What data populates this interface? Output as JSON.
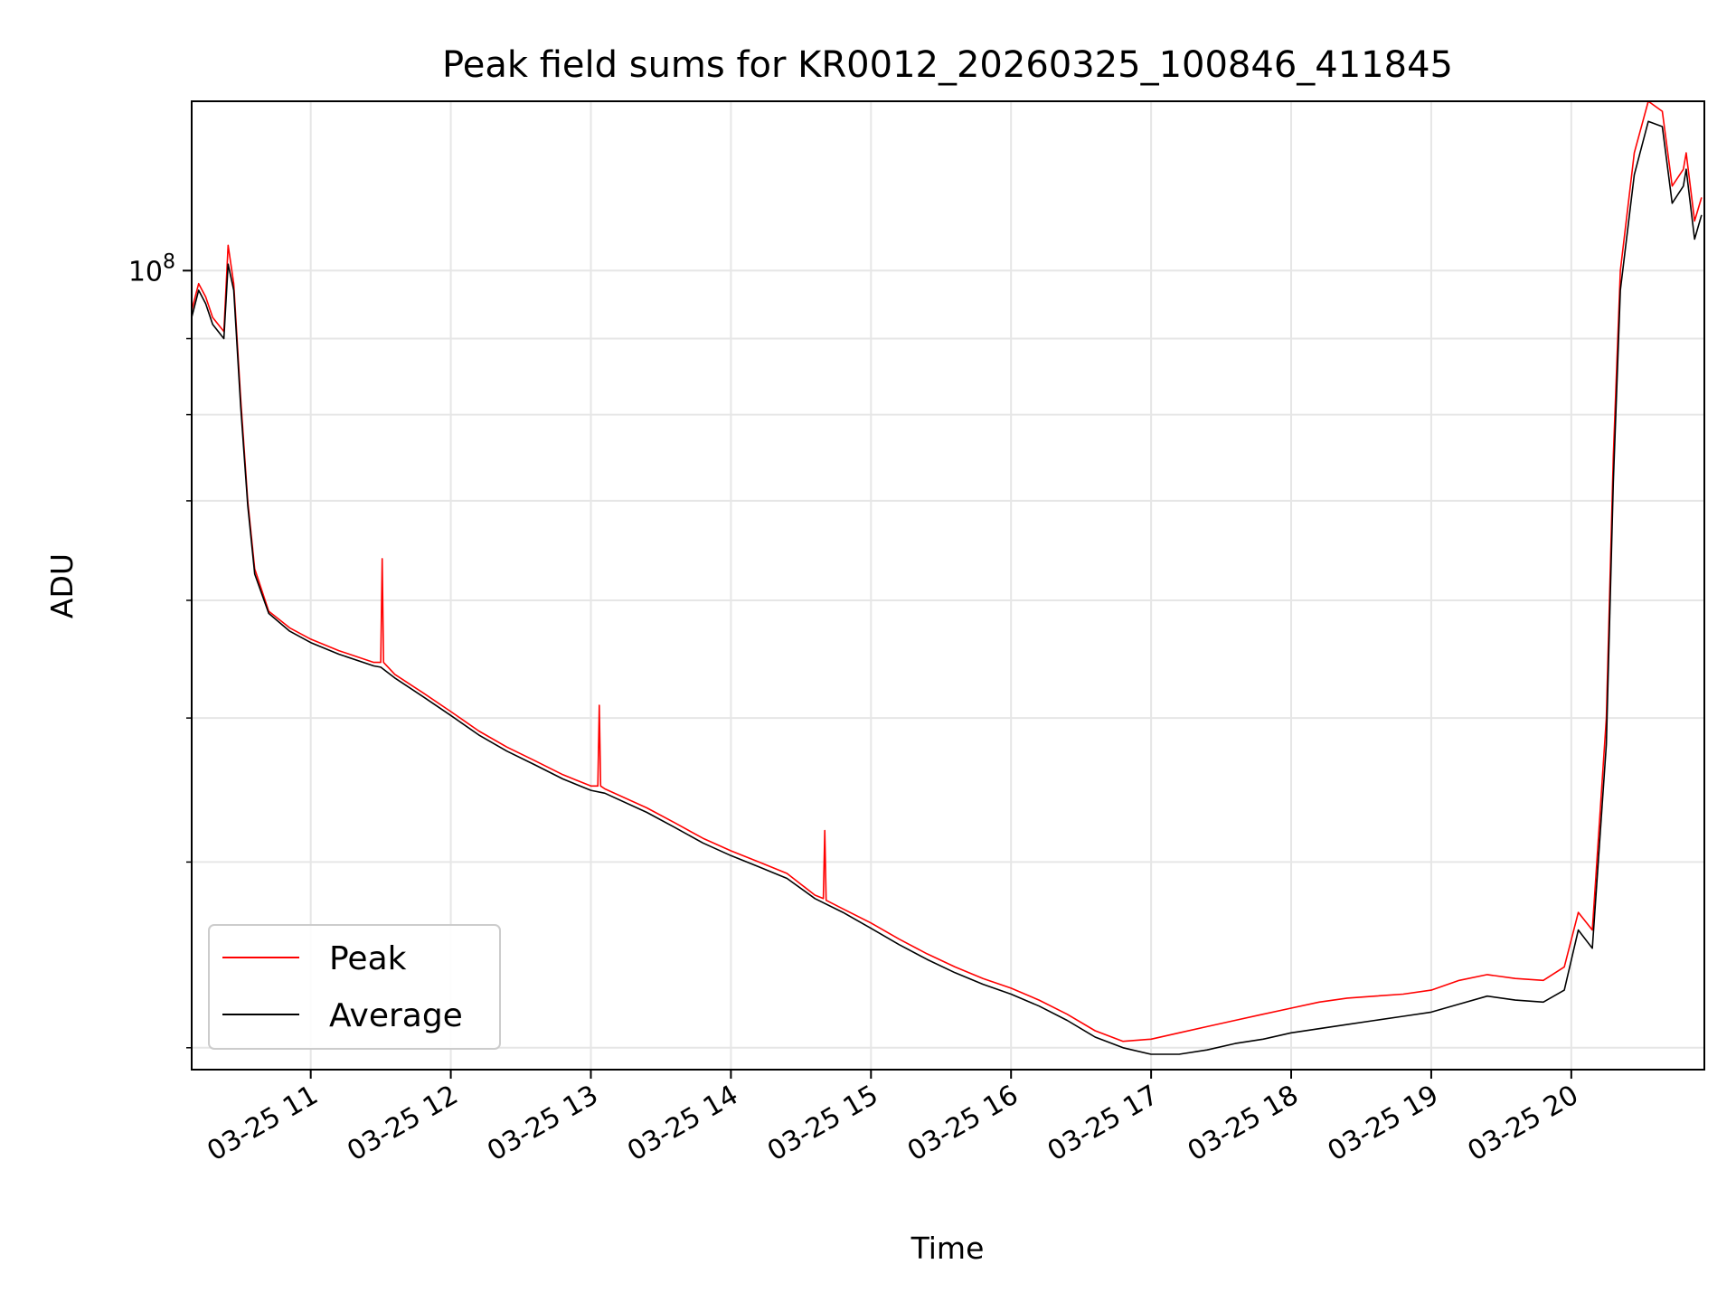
{
  "chart_data": {
    "type": "line",
    "title": "Peak field sums for KR0012_20260325_100846_411845",
    "xlabel": "Time",
    "ylabel": "ADU",
    "yscale": "log",
    "xlim": [
      10.15,
      20.95
    ],
    "ylim": [
      29000000,
      130000000
    ],
    "grid": true,
    "legend_position": "lower-left",
    "x_tick_values": [
      11,
      12,
      13,
      14,
      15,
      16,
      17,
      18,
      19,
      20
    ],
    "x_tick_labels": [
      "03-25 11",
      "03-25 12",
      "03-25 13",
      "03-25 14",
      "03-25 15",
      "03-25 16",
      "03-25 17",
      "03-25 18",
      "03-25 19",
      "03-25 20"
    ],
    "y_tick_major": {
      "value": 100000000,
      "base": "10",
      "exponent": "8"
    },
    "y_minor_ticks": [
      30000000,
      40000000,
      50000000,
      60000000,
      70000000,
      80000000,
      90000000
    ],
    "series": [
      {
        "name": "Peak",
        "color": "#ff0000",
        "x": [
          10.15,
          10.2,
          10.25,
          10.3,
          10.38,
          10.41,
          10.45,
          10.5,
          10.55,
          10.6,
          10.7,
          10.85,
          11.0,
          11.2,
          11.45,
          11.5,
          11.51,
          11.52,
          11.6,
          11.8,
          12.0,
          12.2,
          12.4,
          12.6,
          12.8,
          13.0,
          13.05,
          13.06,
          13.07,
          13.1,
          13.4,
          13.6,
          13.8,
          14.0,
          14.2,
          14.4,
          14.6,
          14.66,
          14.67,
          14.68,
          14.8,
          15.0,
          15.2,
          15.4,
          15.6,
          15.8,
          16.0,
          16.2,
          16.4,
          16.6,
          16.8,
          17.0,
          17.2,
          17.4,
          17.6,
          17.8,
          18.0,
          18.2,
          18.4,
          18.6,
          18.8,
          19.0,
          19.2,
          19.4,
          19.6,
          19.8,
          19.95,
          20.05,
          20.15,
          20.25,
          20.3,
          20.35,
          20.45,
          20.55,
          20.65,
          20.72,
          20.8,
          20.82,
          20.88,
          20.93
        ],
        "y": [
          94000000,
          98000000,
          96000000,
          93000000,
          91000000,
          104000000,
          98000000,
          82000000,
          70000000,
          63000000,
          59000000,
          57500000,
          56500000,
          55500000,
          54500000,
          54500000,
          64000000,
          54500000,
          53500000,
          52000000,
          50500000,
          49000000,
          47800000,
          46800000,
          45800000,
          45000000,
          45000000,
          51000000,
          45000000,
          44800000,
          43500000,
          42500000,
          41500000,
          40700000,
          40000000,
          39300000,
          38000000,
          37800000,
          42000000,
          37700000,
          37200000,
          36400000,
          35500000,
          34700000,
          34000000,
          33400000,
          32900000,
          32300000,
          31600000,
          30800000,
          30300000,
          30400000,
          30700000,
          31000000,
          31300000,
          31600000,
          31900000,
          32200000,
          32400000,
          32500000,
          32600000,
          32800000,
          33300000,
          33600000,
          33400000,
          33300000,
          34000000,
          37000000,
          36000000,
          50000000,
          75000000,
          100000000,
          120000000,
          130000000,
          128000000,
          114000000,
          117000000,
          120000000,
          108000000,
          112000000
        ]
      },
      {
        "name": "Average",
        "color": "#000000",
        "x": [
          10.15,
          10.2,
          10.25,
          10.3,
          10.38,
          10.41,
          10.45,
          10.5,
          10.55,
          10.6,
          10.7,
          10.85,
          11.0,
          11.2,
          11.45,
          11.5,
          11.6,
          11.8,
          12.0,
          12.2,
          12.4,
          12.6,
          12.8,
          13.0,
          13.1,
          13.4,
          13.6,
          13.8,
          14.0,
          14.2,
          14.4,
          14.6,
          14.8,
          15.0,
          15.2,
          15.4,
          15.6,
          15.8,
          16.0,
          16.2,
          16.4,
          16.6,
          16.8,
          17.0,
          17.2,
          17.4,
          17.6,
          17.8,
          18.0,
          18.2,
          18.4,
          18.6,
          18.8,
          19.0,
          19.2,
          19.4,
          19.6,
          19.8,
          19.95,
          20.05,
          20.15,
          20.25,
          20.3,
          20.35,
          20.45,
          20.55,
          20.65,
          20.72,
          20.8,
          20.82,
          20.88,
          20.93
        ],
        "y": [
          93000000,
          97000000,
          95000000,
          92000000,
          90000000,
          101000000,
          97000000,
          81000000,
          69500000,
          62500000,
          58800000,
          57200000,
          56200000,
          55200000,
          54200000,
          54100000,
          53200000,
          51700000,
          50200000,
          48700000,
          47500000,
          46500000,
          45500000,
          44700000,
          44500000,
          43200000,
          42200000,
          41200000,
          40400000,
          39700000,
          39000000,
          37800000,
          37000000,
          36100000,
          35200000,
          34400000,
          33700000,
          33100000,
          32600000,
          32000000,
          31300000,
          30500000,
          30000000,
          29700000,
          29700000,
          29900000,
          30200000,
          30400000,
          30700000,
          30900000,
          31100000,
          31300000,
          31500000,
          31700000,
          32100000,
          32500000,
          32300000,
          32200000,
          32800000,
          36000000,
          35000000,
          48000000,
          72000000,
          97000000,
          116000000,
          126000000,
          125000000,
          111000000,
          114000000,
          117000000,
          105000000,
          109000000
        ]
      }
    ]
  }
}
